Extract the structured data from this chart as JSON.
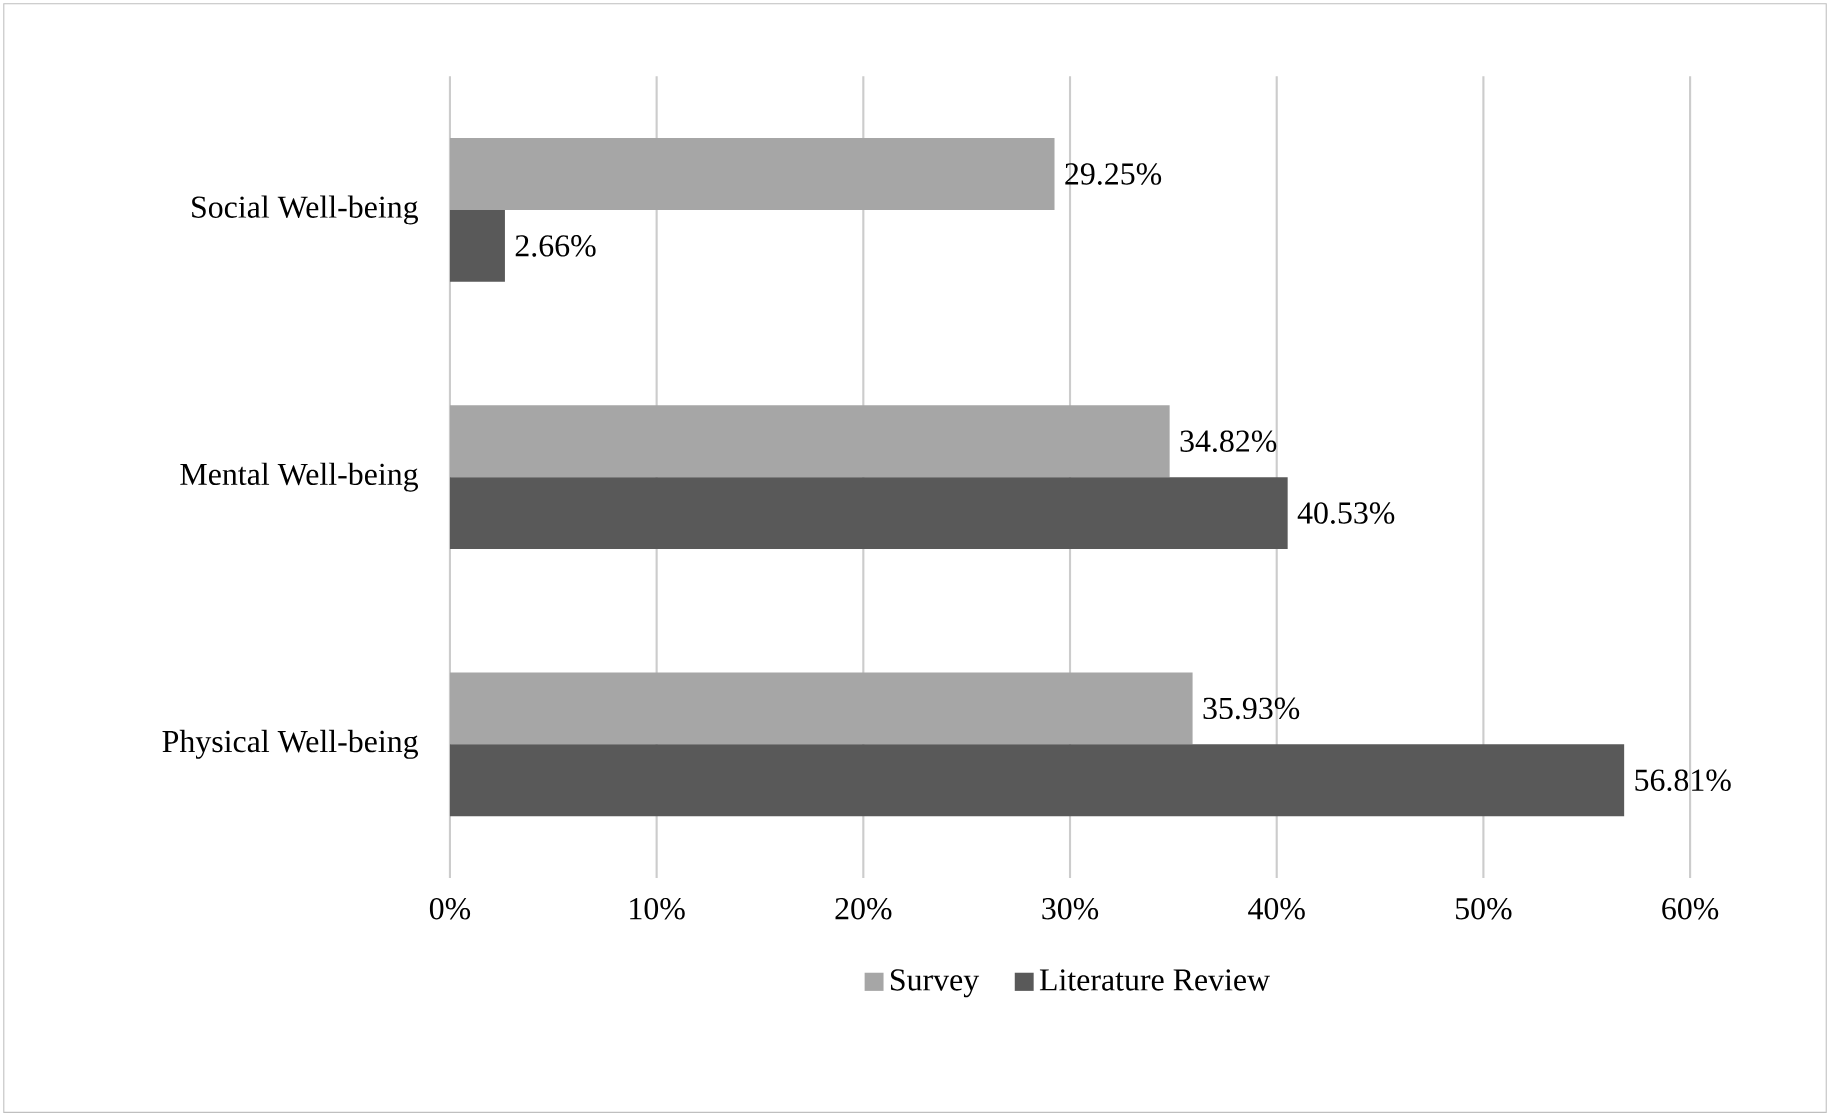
{
  "chart_data": {
    "type": "bar",
    "orientation": "horizontal",
    "categories": [
      "Social Well-being",
      "Mental Well-being",
      "Physical Well-being"
    ],
    "series": [
      {
        "name": "Survey",
        "color": "#a6a6a6",
        "values": [
          29.25,
          34.82,
          35.93
        ],
        "value_labels": [
          "29.25%",
          "34.82%",
          "35.93%"
        ]
      },
      {
        "name": "Literature Review",
        "color": "#595959",
        "values": [
          2.66,
          40.53,
          56.81
        ],
        "value_labels": [
          "2.66%",
          "40.53%",
          "56.81%"
        ]
      }
    ],
    "xlim": [
      0,
      60
    ],
    "xticks": [
      {
        "value": 0,
        "label": "0%"
      },
      {
        "value": 10,
        "label": "10%"
      },
      {
        "value": 20,
        "label": "20%"
      },
      {
        "value": 30,
        "label": "30%"
      },
      {
        "value": 40,
        "label": "40%"
      },
      {
        "value": 50,
        "label": "50%"
      },
      {
        "value": 60,
        "label": "60%"
      }
    ],
    "grid": "x",
    "legend": "bottom"
  }
}
